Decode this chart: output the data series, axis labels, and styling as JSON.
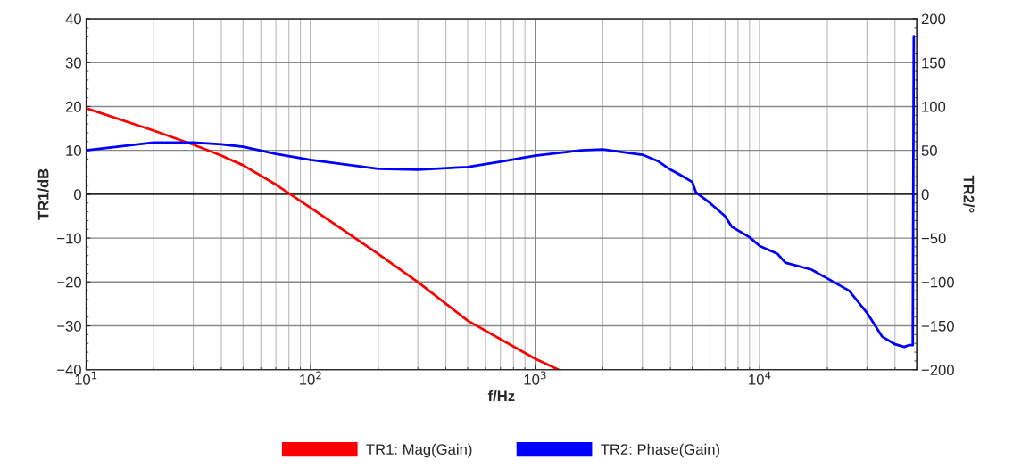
{
  "chart_data": {
    "type": "line",
    "xlabel": "f/Hz",
    "ylabel": "TR1/dB",
    "y2label": "TR2/°",
    "log": "x",
    "xlim": [
      10,
      50000
    ],
    "xticks": [
      {
        "value": 10,
        "label": "10$^{1}$"
      },
      {
        "value": 100,
        "label": "10$^{2}$"
      },
      {
        "value": 1000,
        "label": "10$^{3}$"
      },
      {
        "value": 10000,
        "label": "10$^{4}$"
      }
    ],
    "ylim": [
      -40,
      40
    ],
    "yticks": [
      -40,
      -30,
      -20,
      -10,
      0,
      10,
      20,
      30,
      40
    ],
    "y2lim": [
      -200,
      200
    ],
    "y2ticks": [
      -200,
      -150,
      -100,
      -50,
      0,
      50,
      100,
      150,
      200
    ],
    "grid": true,
    "legend": "bottom",
    "ref_lines": [
      {
        "axis": "y",
        "value": 0,
        "color": "#000000"
      }
    ],
    "series": [
      {
        "name": "TR1: Mag(Gain)",
        "color": "#ff0000",
        "x": [
          10,
          20,
          30,
          40,
          50,
          70,
          80,
          100,
          200,
          300,
          500,
          1000,
          1270
        ],
        "values": [
          19.6,
          14.5,
          11.3,
          8.8,
          6.6,
          2.2,
          0.2,
          -3.1,
          -13.6,
          -20.0,
          -28.8,
          -37.5,
          -40
        ]
      },
      {
        "name": "TR2: Phase(Gain)",
        "color": "#0000ff",
        "axis": "y2",
        "x": [
          10,
          20,
          30,
          40,
          50,
          70,
          100,
          200,
          300,
          500,
          700,
          1000,
          1600,
          2000,
          3000,
          3500,
          4000,
          4500,
          5000,
          5200,
          6000,
          7000,
          7500,
          9000,
          10000,
          12000,
          13000,
          17000,
          20000,
          25000,
          30000,
          35000,
          40000,
          44000,
          46000,
          48000,
          48500
        ],
        "values": [
          50,
          59,
          59,
          57,
          54,
          46,
          39,
          29,
          28,
          31,
          37,
          44,
          50,
          51,
          45,
          38,
          28,
          21,
          14,
          2,
          -10,
          -25,
          -37,
          -49,
          -59,
          -68,
          -78,
          -86,
          -96,
          -110,
          -135,
          -162,
          -171,
          -174,
          -172,
          -172,
          180
        ]
      }
    ]
  }
}
